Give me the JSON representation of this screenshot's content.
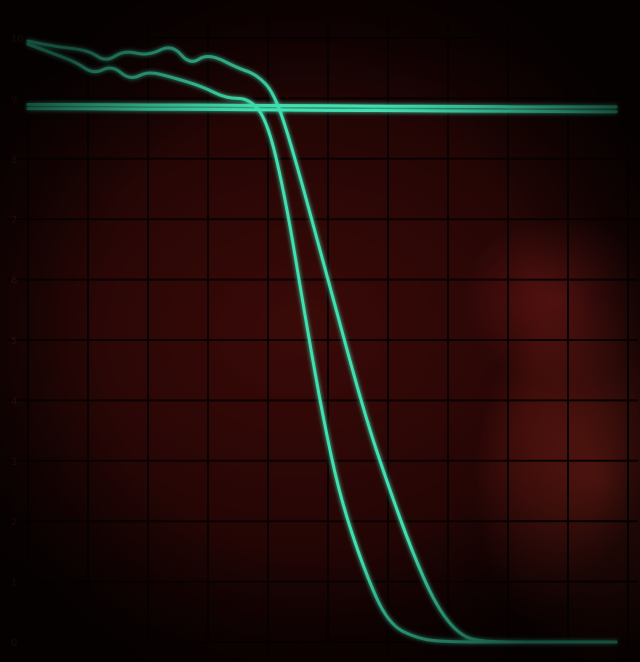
{
  "display": {
    "phosphor_color": "#3fe0b0",
    "graticule_color": "#0a0202",
    "background_color": "#2a0706",
    "grid": {
      "columns": 10,
      "rows": 10
    },
    "y_scale_labels": [
      "10",
      "9",
      "8",
      "7",
      "6",
      "5",
      "4",
      "3",
      "2",
      "1",
      "0"
    ]
  },
  "traces": [
    {
      "name": "",
      "points": [
        [
          0,
          9.9
        ],
        [
          0.4,
          9.75
        ],
        [
          0.8,
          9.6
        ],
        [
          1.1,
          9.4
        ],
        [
          1.4,
          9.55
        ],
        [
          1.7,
          9.3
        ],
        [
          2.0,
          9.45
        ],
        [
          2.4,
          9.35
        ],
        [
          2.9,
          9.2
        ],
        [
          3.3,
          9.0
        ],
        [
          3.7,
          9.0
        ],
        [
          4.0,
          8.6
        ],
        [
          4.3,
          7.3
        ],
        [
          4.6,
          5.5
        ],
        [
          4.9,
          3.8
        ],
        [
          5.2,
          2.4
        ],
        [
          5.6,
          1.2
        ],
        [
          6.0,
          0.3
        ],
        [
          6.5,
          0.05
        ],
        [
          7.0,
          0.0
        ],
        [
          8.0,
          0.0
        ],
        [
          9.0,
          0.0
        ],
        [
          9.8,
          0.0
        ]
      ]
    },
    {
      "name": "",
      "points": [
        [
          0,
          9.95
        ],
        [
          0.5,
          9.85
        ],
        [
          1.0,
          9.8
        ],
        [
          1.3,
          9.6
        ],
        [
          1.6,
          9.8
        ],
        [
          2.0,
          9.7
        ],
        [
          2.4,
          9.9
        ],
        [
          2.7,
          9.55
        ],
        [
          3.0,
          9.75
        ],
        [
          3.5,
          9.5
        ],
        [
          3.8,
          9.4
        ],
        [
          4.1,
          9.1
        ],
        [
          4.4,
          8.2
        ],
        [
          5.0,
          6.0
        ],
        [
          5.6,
          3.8
        ],
        [
          6.0,
          2.6
        ],
        [
          6.4,
          1.5
        ],
        [
          6.8,
          0.6
        ],
        [
          7.2,
          0.1
        ],
        [
          7.6,
          0.0
        ],
        [
          8.5,
          0.0
        ],
        [
          9.8,
          0.0
        ]
      ]
    },
    {
      "name": "",
      "points": [
        [
          0,
          8.83
        ],
        [
          1,
          8.83
        ],
        [
          2,
          8.82
        ],
        [
          3,
          8.82
        ],
        [
          4,
          8.81
        ],
        [
          5,
          8.8
        ],
        [
          6,
          8.8
        ],
        [
          7,
          8.79
        ],
        [
          8,
          8.79
        ],
        [
          9,
          8.78
        ],
        [
          9.8,
          8.78
        ]
      ]
    },
    {
      "name": "",
      "points": [
        [
          0,
          8.9
        ],
        [
          1,
          8.9
        ],
        [
          2,
          8.89
        ],
        [
          3,
          8.89
        ],
        [
          4,
          8.88
        ],
        [
          5,
          8.88
        ],
        [
          6,
          8.87
        ],
        [
          7,
          8.87
        ],
        [
          8,
          8.86
        ],
        [
          9,
          8.86
        ],
        [
          9.8,
          8.86
        ]
      ]
    }
  ]
}
